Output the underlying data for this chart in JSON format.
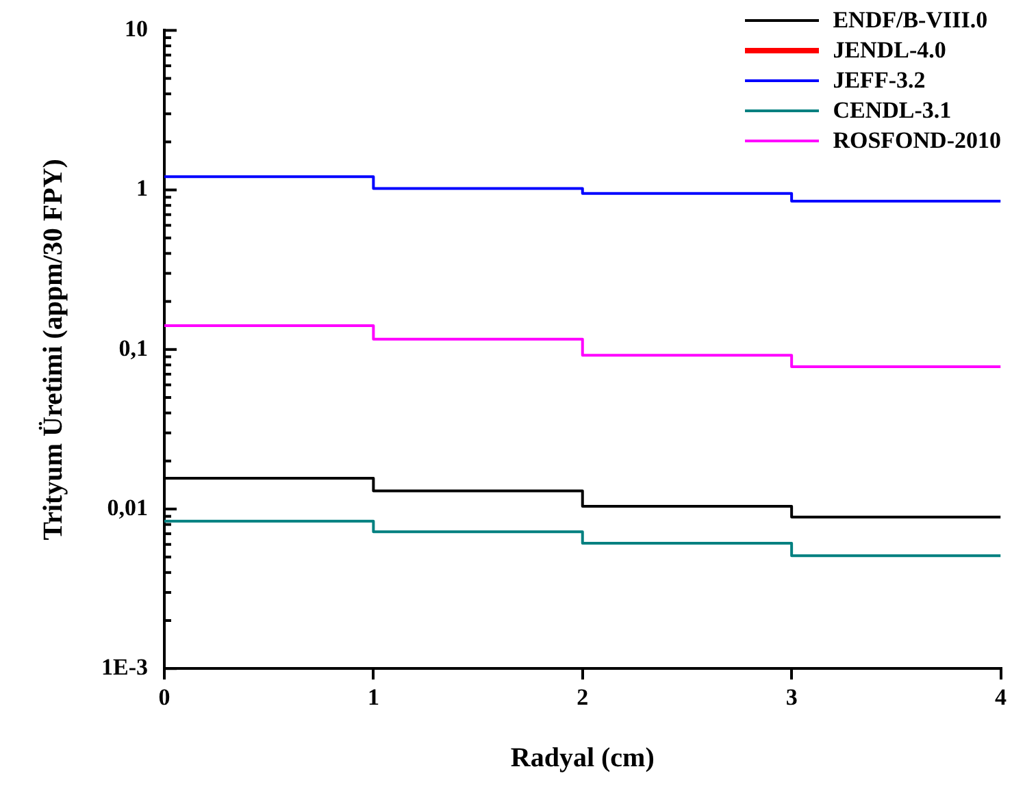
{
  "chart_data": {
    "type": "step",
    "xlabel": "Radyal (cm)",
    "ylabel": "Trityum Üretimi (appm/30 FPY)",
    "x": [
      0,
      1,
      2,
      3,
      4
    ],
    "series": [
      {
        "name": "ENDF/B-VIII.0",
        "color": "#000000",
        "values": [
          0.0156,
          0.013,
          0.0104,
          0.0089,
          0.0089
        ]
      },
      {
        "name": "JENDL-4.0",
        "color": "#ff0000",
        "values": [
          null,
          null,
          null,
          null,
          null
        ]
      },
      {
        "name": "JEFF-3.2",
        "color": "#0000ff",
        "values": [
          1.21,
          1.02,
          0.95,
          0.85,
          0.85
        ]
      },
      {
        "name": "CENDL-3.1",
        "color": "#008080",
        "values": [
          0.0084,
          0.0072,
          0.0061,
          0.0051,
          0.0051
        ]
      },
      {
        "name": "ROSFOND-2010",
        "color": "#ff00ff",
        "values": [
          0.141,
          0.116,
          0.092,
          0.078,
          0.078
        ]
      }
    ],
    "log": "y",
    "xlim": [
      0,
      4
    ],
    "xticks": [
      0,
      1,
      2,
      3,
      4
    ],
    "ylim": [
      0.001,
      10
    ],
    "yticks": [
      {
        "value": 0.001,
        "label": "1E-3"
      },
      {
        "value": 0.002,
        "label": null
      },
      {
        "value": 0.003,
        "label": null
      },
      {
        "value": 0.004,
        "label": null
      },
      {
        "value": 0.005,
        "label": null
      },
      {
        "value": 0.006,
        "label": null
      },
      {
        "value": 0.007,
        "label": null
      },
      {
        "value": 0.008,
        "label": null
      },
      {
        "value": 0.009,
        "label": null
      },
      {
        "value": 0.01,
        "label": "0,01"
      },
      {
        "value": 0.02,
        "label": null
      },
      {
        "value": 0.03,
        "label": null
      },
      {
        "value": 0.04,
        "label": null
      },
      {
        "value": 0.05,
        "label": null
      },
      {
        "value": 0.06,
        "label": null
      },
      {
        "value": 0.07,
        "label": null
      },
      {
        "value": 0.08,
        "label": null
      },
      {
        "value": 0.09,
        "label": null
      },
      {
        "value": 0.1,
        "label": "0,1"
      },
      {
        "value": 0.2,
        "label": null
      },
      {
        "value": 0.3,
        "label": null
      },
      {
        "value": 0.4,
        "label": null
      },
      {
        "value": 0.5,
        "label": null
      },
      {
        "value": 0.6,
        "label": null
      },
      {
        "value": 0.7,
        "label": null
      },
      {
        "value": 0.8,
        "label": null
      },
      {
        "value": 0.9,
        "label": null
      },
      1,
      {
        "value": 2,
        "label": null
      },
      {
        "value": 3,
        "label": null
      },
      {
        "value": 4,
        "label": null
      },
      {
        "value": 5,
        "label": null
      },
      {
        "value": 6,
        "label": null
      },
      {
        "value": 7,
        "label": null
      },
      {
        "value": 8,
        "label": null
      },
      {
        "value": 9,
        "label": null
      },
      10
    ],
    "grid": false,
    "legend": "top right",
    "marker": "none",
    "line_style": "solid"
  }
}
